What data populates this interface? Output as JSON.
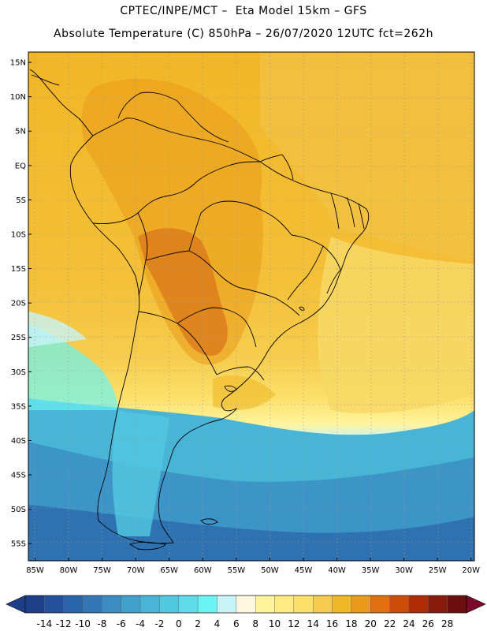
{
  "header": {
    "line1": "CPTEC/INPE/MCT –  Eta Model 15km – GFS",
    "line2": "Absolute Temperature (C) 850hPa – 26/07/2020 12UTC fct=262h"
  },
  "map": {
    "lat_labels": [
      "15N",
      "10N",
      "5N",
      "EQ",
      "5S",
      "10S",
      "15S",
      "20S",
      "25S",
      "30S",
      "35S",
      "40S",
      "45S",
      "50S",
      "55S"
    ],
    "lon_labels": [
      "85W",
      "80W",
      "75W",
      "70W",
      "65W",
      "60W",
      "55W",
      "50W",
      "45W",
      "40W",
      "35W",
      "30W",
      "25W",
      "20W"
    ],
    "lat_values": [
      15,
      10,
      5,
      0,
      -5,
      -10,
      -15,
      -20,
      -25,
      -30,
      -35,
      -40,
      -45,
      -50,
      -55
    ],
    "lon_values": [
      -85,
      -80,
      -75,
      -70,
      -65,
      -60,
      -55,
      -50,
      -45,
      -40,
      -35,
      -30,
      -25,
      -20
    ],
    "lat_range": [
      -57.5,
      16.5
    ],
    "lon_range": [
      -86,
      -19.5
    ]
  },
  "colorbar": {
    "labels": [
      "-14",
      "-12",
      "-10",
      "-8",
      "-6",
      "-4",
      "-2",
      "0",
      "2",
      "4",
      "6",
      "8",
      "10",
      "12",
      "14",
      "16",
      "18",
      "20",
      "22",
      "24",
      "26",
      "28"
    ],
    "colors": [
      "#1d3f8a",
      "#23509a",
      "#2a64aa",
      "#3477b6",
      "#3b8cc2",
      "#41a0cc",
      "#48b4d6",
      "#52c8e0",
      "#5edcea",
      "#6af4f4",
      "#c8f4f8",
      "#fff8e0",
      "#fff49c",
      "#ffec80",
      "#fce06a",
      "#f6cc4e",
      "#f0b826",
      "#ea9a1a",
      "#e07010",
      "#cc4c08",
      "#b02c06",
      "#8a1a0a",
      "#6a0e10"
    ]
  },
  "legend_note": "temperature scale in degrees Celsius"
}
